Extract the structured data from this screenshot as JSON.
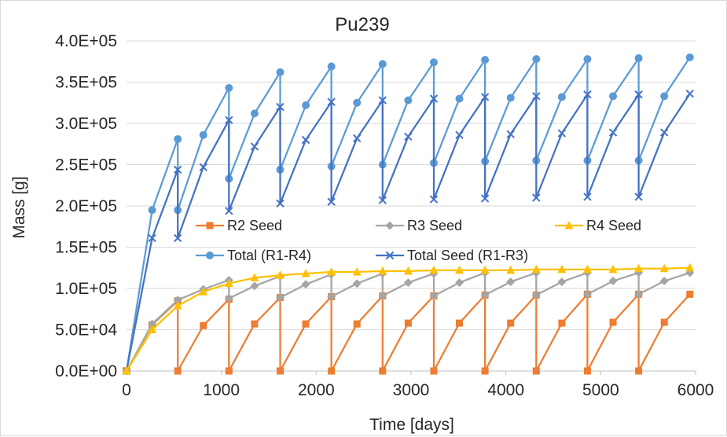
{
  "chart_data": {
    "type": "line",
    "title": "Pu239",
    "xlabel": "Time [days]",
    "ylabel": "Mass [g]",
    "xlim": [
      0,
      6000
    ],
    "ylim": [
      0,
      400000
    ],
    "x_ticks": [
      "0",
      "1000",
      "2000",
      "3000",
      "4000",
      "5000",
      "6000"
    ],
    "y_ticks": [
      "0.0E+00",
      "5.0E+04",
      "1.0E+05",
      "1.5E+05",
      "2.0E+05",
      "2.5E+05",
      "3.0E+05",
      "3.5E+05",
      "4.0E+05"
    ],
    "grid": "horizontal",
    "legend_placement": "center",
    "series": [
      {
        "name": "R2 Seed",
        "color": "#ED7D31",
        "marker": "square",
        "points": [
          [
            0,
            0
          ],
          [
            270,
            56000
          ],
          [
            540,
            85000
          ],
          [
            540,
            0
          ],
          [
            810,
            55000
          ],
          [
            1080,
            87000
          ],
          [
            1080,
            0
          ],
          [
            1350,
            57000
          ],
          [
            1620,
            89000
          ],
          [
            1620,
            0
          ],
          [
            1890,
            57000
          ],
          [
            2160,
            90000
          ],
          [
            2160,
            0
          ],
          [
            2430,
            57000
          ],
          [
            2700,
            91000
          ],
          [
            2700,
            0
          ],
          [
            2970,
            58000
          ],
          [
            3240,
            91000
          ],
          [
            3240,
            0
          ],
          [
            3510,
            58000
          ],
          [
            3780,
            92000
          ],
          [
            3780,
            0
          ],
          [
            4050,
            58000
          ],
          [
            4320,
            92000
          ],
          [
            4320,
            0
          ],
          [
            4590,
            58000
          ],
          [
            4860,
            93000
          ],
          [
            4860,
            0
          ],
          [
            5130,
            59000
          ],
          [
            5400,
            93000
          ],
          [
            5400,
            0
          ],
          [
            5670,
            59000
          ],
          [
            5940,
            93000
          ]
        ]
      },
      {
        "name": "R3 Seed",
        "color": "#A5A5A5",
        "marker": "diamond",
        "points": [
          [
            0,
            0
          ],
          [
            270,
            57000
          ],
          [
            540,
            86000
          ],
          [
            810,
            99000
          ],
          [
            1080,
            110000
          ],
          [
            1080,
            88000
          ],
          [
            1350,
            103000
          ],
          [
            1620,
            115000
          ],
          [
            1620,
            89000
          ],
          [
            1890,
            105000
          ],
          [
            2160,
            117000
          ],
          [
            2160,
            90000
          ],
          [
            2430,
            106000
          ],
          [
            2700,
            118000
          ],
          [
            2700,
            91000
          ],
          [
            2970,
            107000
          ],
          [
            3240,
            118000
          ],
          [
            3240,
            91000
          ],
          [
            3510,
            107000
          ],
          [
            3780,
            119000
          ],
          [
            3780,
            92000
          ],
          [
            4050,
            108000
          ],
          [
            4320,
            119000
          ],
          [
            4320,
            92000
          ],
          [
            4590,
            108000
          ],
          [
            4860,
            119000
          ],
          [
            4860,
            93000
          ],
          [
            5130,
            109000
          ],
          [
            5400,
            119000
          ],
          [
            5400,
            93000
          ],
          [
            5670,
            109000
          ],
          [
            5940,
            119000
          ]
        ]
      },
      {
        "name": "R4 Seed",
        "color": "#FFC000",
        "marker": "triangle",
        "points": [
          [
            0,
            0
          ],
          [
            270,
            50000
          ],
          [
            540,
            79000
          ],
          [
            810,
            96000
          ],
          [
            1080,
            106000
          ],
          [
            1350,
            113000
          ],
          [
            1620,
            116000
          ],
          [
            1890,
            118000
          ],
          [
            2160,
            120000
          ],
          [
            2430,
            120000
          ],
          [
            2700,
            121000
          ],
          [
            2970,
            121000
          ],
          [
            3240,
            122000
          ],
          [
            3510,
            122000
          ],
          [
            3780,
            122000
          ],
          [
            4050,
            122000
          ],
          [
            4320,
            123000
          ],
          [
            4590,
            123000
          ],
          [
            4860,
            123000
          ],
          [
            5130,
            123000
          ],
          [
            5400,
            124000
          ],
          [
            5670,
            124000
          ],
          [
            5940,
            125000
          ]
        ]
      },
      {
        "name": "Total (R1-R4)",
        "color": "#5B9BD5",
        "marker": "circle",
        "points": [
          [
            0,
            0
          ],
          [
            270,
            195000
          ],
          [
            540,
            281000
          ],
          [
            540,
            195000
          ],
          [
            810,
            286000
          ],
          [
            1080,
            343000
          ],
          [
            1080,
            233000
          ],
          [
            1350,
            312000
          ],
          [
            1620,
            362000
          ],
          [
            1620,
            244000
          ],
          [
            1890,
            322000
          ],
          [
            2160,
            369000
          ],
          [
            2160,
            248000
          ],
          [
            2430,
            325000
          ],
          [
            2700,
            372000
          ],
          [
            2700,
            250000
          ],
          [
            2970,
            328000
          ],
          [
            3240,
            374000
          ],
          [
            3240,
            252000
          ],
          [
            3510,
            330000
          ],
          [
            3780,
            377000
          ],
          [
            3780,
            254000
          ],
          [
            4050,
            331000
          ],
          [
            4320,
            378000
          ],
          [
            4320,
            255000
          ],
          [
            4590,
            332000
          ],
          [
            4860,
            378000
          ],
          [
            4860,
            255000
          ],
          [
            5130,
            333000
          ],
          [
            5400,
            379000
          ],
          [
            5400,
            255000
          ],
          [
            5670,
            333000
          ],
          [
            5940,
            380000
          ]
        ]
      },
      {
        "name": "Total Seed (R1-R3)",
        "color": "#4472C4",
        "marker": "x",
        "points": [
          [
            0,
            0
          ],
          [
            270,
            161000
          ],
          [
            540,
            244000
          ],
          [
            540,
            161000
          ],
          [
            810,
            247000
          ],
          [
            1080,
            304000
          ],
          [
            1080,
            194000
          ],
          [
            1350,
            272000
          ],
          [
            1620,
            320000
          ],
          [
            1620,
            203000
          ],
          [
            1890,
            280000
          ],
          [
            2160,
            326000
          ],
          [
            2160,
            205000
          ],
          [
            2430,
            282000
          ],
          [
            2700,
            328000
          ],
          [
            2700,
            207000
          ],
          [
            2970,
            284000
          ],
          [
            3240,
            330000
          ],
          [
            3240,
            208000
          ],
          [
            3510,
            286000
          ],
          [
            3780,
            332000
          ],
          [
            3780,
            209000
          ],
          [
            4050,
            287000
          ],
          [
            4320,
            333000
          ],
          [
            4320,
            210000
          ],
          [
            4590,
            288000
          ],
          [
            4860,
            335000
          ],
          [
            4860,
            211000
          ],
          [
            5130,
            289000
          ],
          [
            5400,
            335000
          ],
          [
            5400,
            211000
          ],
          [
            5670,
            289000
          ],
          [
            5940,
            336000
          ]
        ]
      }
    ]
  }
}
